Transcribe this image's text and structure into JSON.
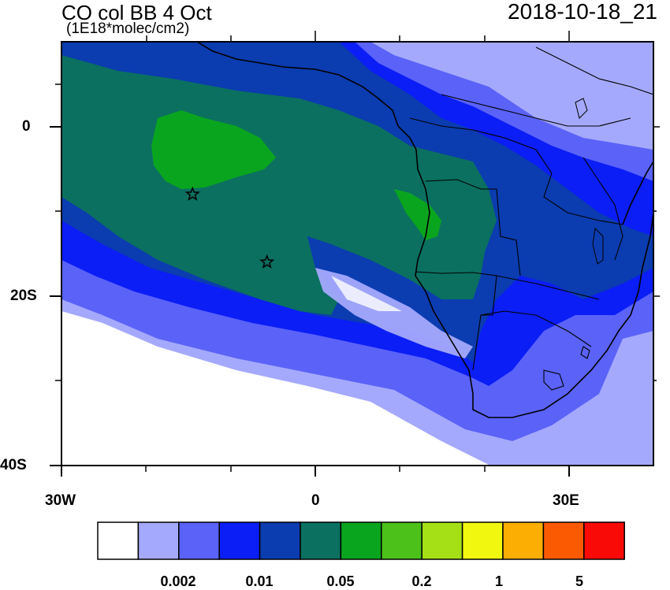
{
  "header": {
    "title": "CO col BB 4 Oct",
    "units": "(1E18*molec/cm2)",
    "timestamp": "2018-10-18_21"
  },
  "axes": {
    "y_ticks": [
      "0",
      "20S",
      "40S"
    ],
    "x_ticks": [
      "30W",
      "0",
      "30E"
    ]
  },
  "colorbar": {
    "colors": [
      "#ffffff",
      "#a5a9fd",
      "#5a62f8",
      "#0b1ef5",
      "#0b3cb0",
      "#0b7060",
      "#0aa51e",
      "#4cc11a",
      "#a5e016",
      "#f2f70f",
      "#fcae02",
      "#fb5a03",
      "#fa0a07"
    ],
    "labels": [
      "0.002",
      "0.01",
      "0.05",
      "0.2",
      "1",
      "5"
    ]
  },
  "markers": [
    {
      "name": "star",
      "lon": -14.5,
      "lat": -8.0
    },
    {
      "name": "star",
      "lon": -5.7,
      "lat": -16.0
    }
  ]
}
